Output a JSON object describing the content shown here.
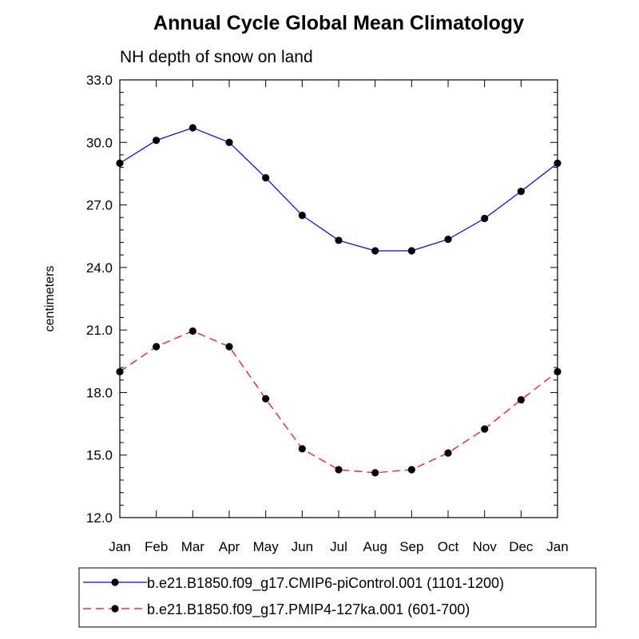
{
  "chart_data": {
    "type": "line",
    "title": "Annual Cycle Global Mean Climatology",
    "subtitle": "NH depth of snow on land",
    "xlabel": "",
    "ylabel": "centimeters",
    "categories": [
      "Jan",
      "Feb",
      "Mar",
      "Apr",
      "May",
      "Jun",
      "Jul",
      "Aug",
      "Sep",
      "Oct",
      "Nov",
      "Dec",
      "Jan"
    ],
    "ylim": [
      12.0,
      33.0
    ],
    "yticks": [
      "12.0",
      "15.0",
      "18.0",
      "21.0",
      "24.0",
      "27.0",
      "30.0",
      "33.0"
    ],
    "grid": false,
    "legend_position": "bottom",
    "series": [
      {
        "name": "b.e21.B1850.f09_g17.CMIP6-piControl.001 (1101-1200)",
        "color": "#0000ff",
        "dash": "solid",
        "values": [
          29.0,
          30.1,
          30.7,
          30.0,
          28.3,
          26.5,
          25.3,
          24.8,
          24.8,
          25.35,
          26.35,
          27.65,
          29.0
        ]
      },
      {
        "name": "b.e21.B1850.f09_g17.PMIP4-127ka.001 (601-700)",
        "color": "#ff0000",
        "dash": "dashed",
        "values": [
          19.0,
          20.2,
          20.95,
          20.2,
          17.7,
          15.3,
          14.3,
          14.15,
          14.3,
          15.1,
          16.25,
          17.65,
          19.0
        ]
      }
    ]
  }
}
